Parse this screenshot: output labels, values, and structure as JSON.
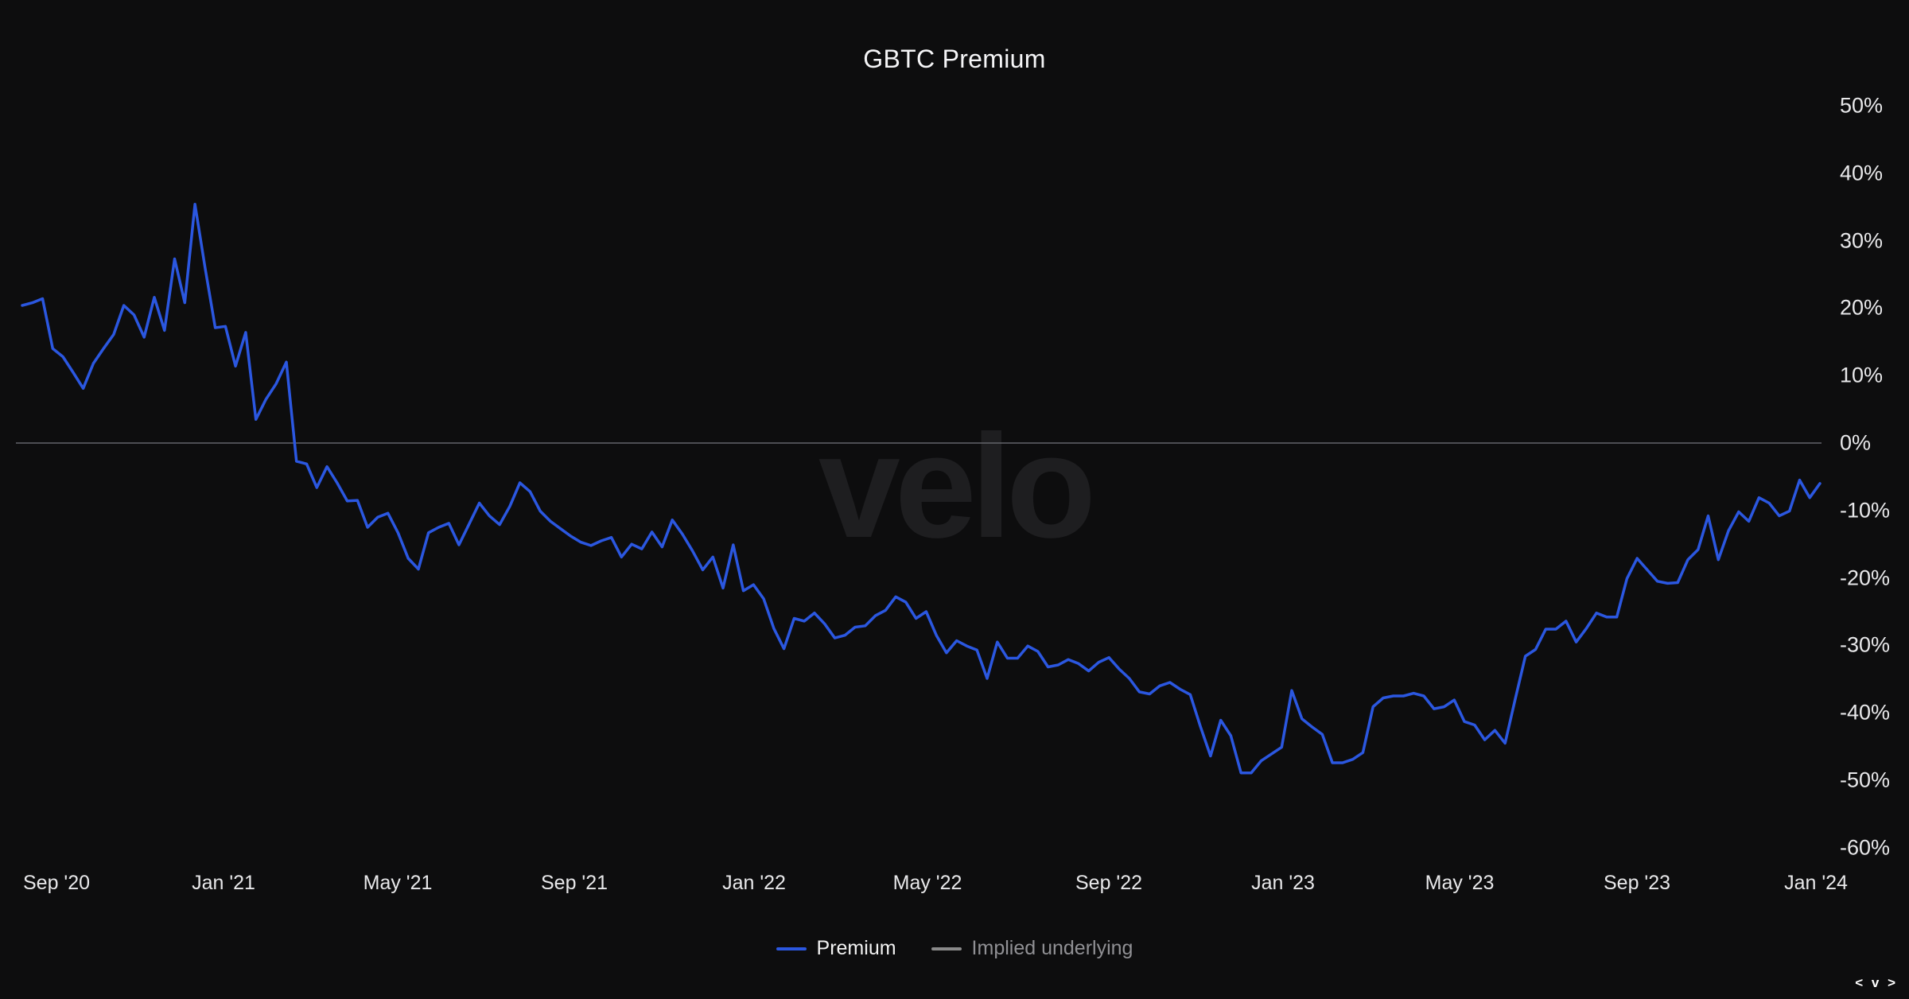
{
  "page": {
    "title": "GBTC Premium"
  },
  "colors": {
    "background": "#0d0d0e",
    "title_text": "#f5f5f7",
    "axis_text": "#e8e8ea",
    "premium_line": "#2b57e0",
    "implied_legend": "#8a8a8a",
    "zero_line": "#63656a",
    "watermark_text": "#1e1e20",
    "legend_premium_text": "#f2f2f2",
    "legend_implied_text": "#909094",
    "corner_text": "#ffffff"
  },
  "watermark": {
    "text": "velo"
  },
  "footer": {
    "corner_mark": "< v >"
  },
  "legend": {
    "items": [
      {
        "label": "Premium",
        "color": "#2b57e0",
        "text_color": "#f2f2f2"
      },
      {
        "label": "Implied underlying",
        "color": "#8a8a8a",
        "text_color": "#909094"
      }
    ]
  },
  "chart_data": {
    "type": "line",
    "title": "GBTC Premium",
    "y_unit": "%",
    "ylim": [
      -62,
      53
    ],
    "y_ticks_percent": [
      50,
      40,
      30,
      20,
      10,
      0,
      -10,
      -20,
      -30,
      -40,
      -50,
      -60
    ],
    "x_tick_labels": [
      "Sep '20",
      "Jan '21",
      "May '21",
      "Sep '21",
      "Jan '22",
      "May '22",
      "Sep '22",
      "Jan '23",
      "May '23",
      "Sep '23",
      "Jan '24"
    ],
    "x_range": {
      "start": "2020-08-08",
      "end": "2024-01-03",
      "sampling": "weekly"
    },
    "grid": "zero line only",
    "legend_position": "bottom-center",
    "series": [
      {
        "name": "Premium",
        "color": "#2b57e0",
        "unit": "%",
        "values": [
          20.4,
          20.8,
          21.4,
          14.0,
          12.8,
          10.5,
          8.1,
          11.8,
          14.0,
          16.1,
          20.4,
          19.0,
          15.7,
          21.6,
          16.7,
          27.3,
          20.8,
          35.4,
          26.0,
          17.1,
          17.3,
          11.4,
          16.4,
          3.5,
          6.5,
          8.8,
          12.0,
          -2.7,
          -3.1,
          -6.6,
          -3.5,
          -5.9,
          -8.6,
          -8.5,
          -12.5,
          -11.0,
          -10.4,
          -13.3,
          -17.1,
          -18.7,
          -13.3,
          -12.5,
          -11.9,
          -15.1,
          -12.0,
          -8.9,
          -10.8,
          -12.1,
          -9.4,
          -5.9,
          -7.2,
          -10.1,
          -11.6,
          -12.7,
          -13.8,
          -14.7,
          -15.2,
          -14.5,
          -14.0,
          -16.9,
          -15.0,
          -15.7,
          -13.2,
          -15.4,
          -11.4,
          -13.5,
          -16.0,
          -18.8,
          -16.9,
          -21.5,
          -15.1,
          -21.9,
          -21.0,
          -23.1,
          -27.5,
          -30.5,
          -26.0,
          -26.4,
          -25.2,
          -26.8,
          -28.9,
          -28.5,
          -27.3,
          -27.1,
          -25.6,
          -24.8,
          -22.8,
          -23.6,
          -26.0,
          -25.0,
          -28.5,
          -31.1,
          -29.3,
          -30.1,
          -30.7,
          -34.9,
          -29.5,
          -31.9,
          -31.9,
          -30.1,
          -30.9,
          -33.2,
          -32.9,
          -32.1,
          -32.7,
          -33.8,
          -32.5,
          -31.8,
          -33.5,
          -34.9,
          -36.9,
          -37.2,
          -36.0,
          -35.5,
          -36.5,
          -37.3,
          -42.0,
          -46.4,
          -41.1,
          -43.4,
          -48.9,
          -48.9,
          -47.1,
          -46.1,
          -45.1,
          -36.7,
          -40.9,
          -42.1,
          -43.2,
          -47.4,
          -47.4,
          -46.9,
          -45.9,
          -39.1,
          -37.8,
          -37.5,
          -37.5,
          -37.1,
          -37.5,
          -39.4,
          -39.1,
          -38.1,
          -41.3,
          -41.8,
          -44.0,
          -42.6,
          -44.5,
          -38.0,
          -31.6,
          -30.6,
          -27.6,
          -27.6,
          -26.4,
          -29.5,
          -27.5,
          -25.2,
          -25.8,
          -25.8,
          -20.1,
          -17.1,
          -18.8,
          -20.5,
          -20.8,
          -20.7,
          -17.3,
          -15.8,
          -10.8,
          -17.3,
          -13.0,
          -10.2,
          -11.6,
          -8.1,
          -8.9,
          -10.8,
          -10.1,
          -5.5,
          -8.1,
          -6.0
        ]
      },
      {
        "name": "Implied underlying",
        "color": "#8a8a8a",
        "unit": "%",
        "values": [
          0,
          0
        ]
      }
    ]
  }
}
